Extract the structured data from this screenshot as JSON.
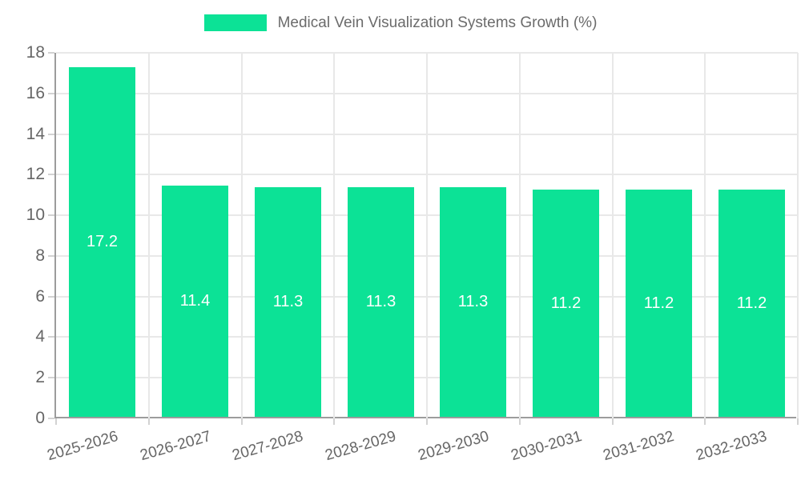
{
  "colors": {
    "bar": "#0CE296",
    "axis_line": "#9C9C9C",
    "gridline": "#E8E8E8",
    "tick_mark": "#D2D2D2",
    "tick_label": "#666666",
    "legend_text": "#6B6B6B",
    "value_label": "#FFFFFF",
    "background": "#FFFFFF"
  },
  "legend": {
    "label": "Medical Vein Visualization Systems Growth (%)"
  },
  "chart_data": {
    "type": "bar",
    "title": "Medical Vein Visualization Systems Growth (%)",
    "categories": [
      "2025-2026",
      "2026-2027",
      "2027-2028",
      "2028-2029",
      "2029-2030",
      "2030-2031",
      "2031-2032",
      "2032-2033"
    ],
    "values": [
      17.2,
      11.4,
      11.3,
      11.3,
      11.3,
      11.2,
      11.2,
      11.2
    ],
    "value_labels": [
      "17.2",
      "11.4",
      "11.3",
      "11.3",
      "11.3",
      "11.2",
      "11.2",
      "11.2"
    ],
    "xlabel": "",
    "ylabel": "",
    "ylim": [
      0,
      18
    ],
    "yticks": [
      0,
      2,
      4,
      6,
      8,
      10,
      12,
      14,
      16,
      18
    ],
    "grid": true,
    "legend_position": "top",
    "x_label_rotation_deg": -16,
    "bar_label_position": "center"
  }
}
